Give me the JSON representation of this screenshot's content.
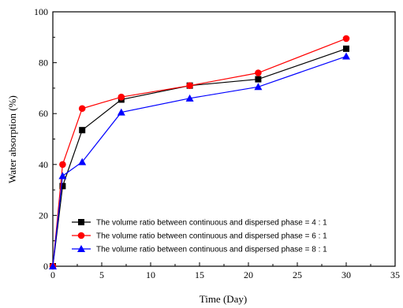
{
  "chart_data": {
    "type": "line",
    "title": "",
    "xlabel": "Time (Day)",
    "ylabel": "Water absorption (%)",
    "xlim": [
      0,
      35
    ],
    "ylim": [
      0,
      100
    ],
    "xticks": [
      0,
      5,
      10,
      15,
      20,
      25,
      30,
      35
    ],
    "yticks": [
      0,
      20,
      40,
      60,
      80,
      100
    ],
    "grid": false,
    "legend_position": "bottom-right",
    "x": [
      0,
      1,
      3,
      7,
      14,
      21,
      30
    ],
    "series": [
      {
        "name": "The volume ratio between continuous and dispersed phase = 4 : 1",
        "values": [
          0,
          31.5,
          53.5,
          65.5,
          71,
          73.5,
          85.5
        ],
        "color": "#000000",
        "marker": "square"
      },
      {
        "name": "The volume ratio between continuous and dispersed phase = 6 : 1",
        "values": [
          0,
          40,
          62,
          66.5,
          71,
          76,
          89.5
        ],
        "color": "#ff0000",
        "marker": "circle"
      },
      {
        "name": "The volume ratio between continuous and dispersed phase = 8 : 1",
        "values": [
          0,
          35.5,
          41,
          60.5,
          66,
          70.5,
          82.5
        ],
        "color": "#0000ff",
        "marker": "triangle"
      }
    ]
  }
}
